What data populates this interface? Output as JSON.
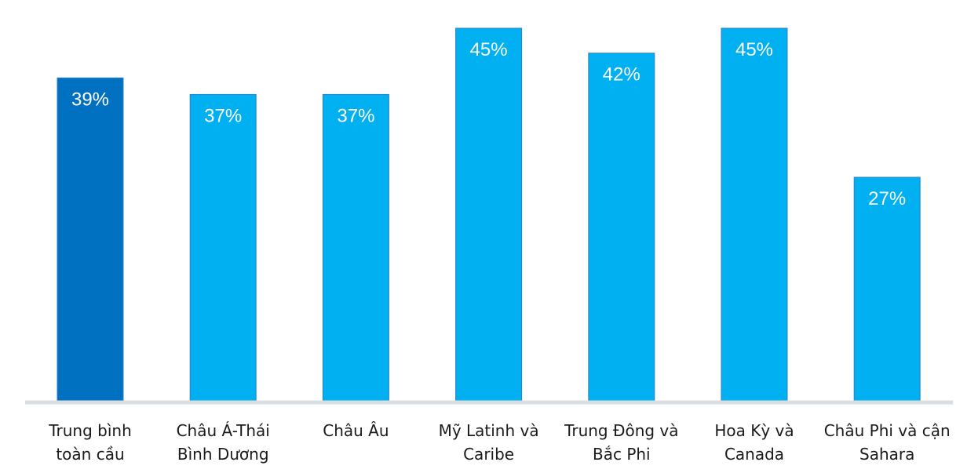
{
  "chart_data": {
    "type": "bar",
    "categories": [
      [
        "Trung bình",
        "toàn cầu"
      ],
      [
        "Châu Á-Thái",
        "Bình Dương"
      ],
      [
        "Châu Âu"
      ],
      [
        "Mỹ Latinh và",
        "Caribe"
      ],
      [
        "Trung Đông và",
        "Bắc Phi"
      ],
      [
        "Hoa Kỳ và",
        "Canada"
      ],
      [
        "Châu Phi và cận",
        "Sahara"
      ]
    ],
    "values": [
      39,
      37,
      37,
      45,
      42,
      45,
      27
    ],
    "value_labels": [
      "39%",
      "37%",
      "37%",
      "45%",
      "42%",
      "45%",
      "27%"
    ],
    "ylim": [
      0,
      48
    ],
    "grid": false,
    "colors": {
      "highlight": "#0070C0",
      "bar": "#00B0F0",
      "bar_edge": "#2F80C8",
      "baseline": "#D9DEE3",
      "value_text": "#FFFFFF",
      "category_text": "#1A1A1A"
    },
    "highlight_index": 0
  }
}
